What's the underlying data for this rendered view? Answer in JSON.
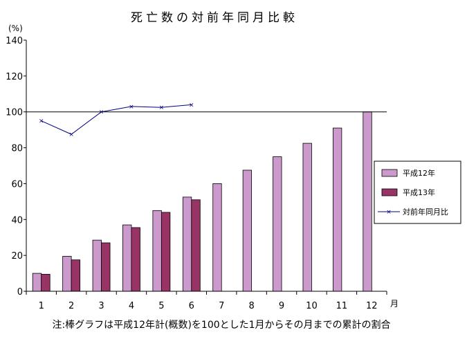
{
  "chart_data": {
    "type": "bar",
    "title": "死亡数の対前年同月比較",
    "y_unit_label": "(%)",
    "x_unit_label": "月",
    "categories": [
      "1",
      "2",
      "3",
      "4",
      "5",
      "6",
      "7",
      "8",
      "9",
      "10",
      "11",
      "12"
    ],
    "ylim": [
      0,
      140
    ],
    "yticks": [
      0,
      20,
      40,
      60,
      80,
      100,
      120,
      140
    ],
    "reference_line": 100,
    "grid": false,
    "legend_position": "right",
    "series": [
      {
        "name": "平成12年",
        "type": "bar",
        "color": "#cc99cc",
        "values": [
          10,
          19.5,
          28.5,
          37,
          45,
          52.5,
          60,
          67.5,
          75,
          82.5,
          91,
          100
        ]
      },
      {
        "name": "平成13年",
        "type": "bar",
        "color": "#993366",
        "values": [
          9.5,
          17.5,
          27,
          35.5,
          44,
          51,
          null,
          null,
          null,
          null,
          null,
          null
        ]
      },
      {
        "name": "対前年同月比",
        "type": "line",
        "color": "#000080",
        "marker": "x",
        "values": [
          95,
          87.5,
          100,
          103,
          102.5,
          104,
          null,
          null,
          null,
          null,
          null,
          null
        ]
      }
    ],
    "note": "注:棒グラフは平成12年計(概数)を100とした1月からその月までの累計の割合"
  }
}
